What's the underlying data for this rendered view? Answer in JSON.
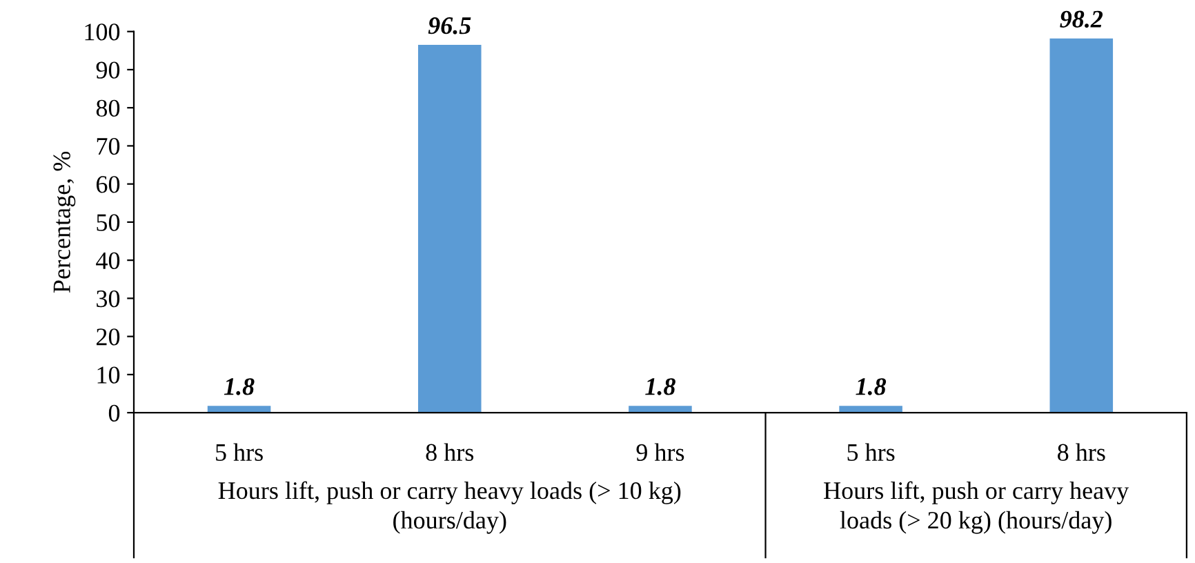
{
  "chart_data": {
    "type": "bar",
    "ylabel": "Percentage, %",
    "categories": [
      "5 hrs",
      "8 hrs",
      "9 hrs",
      "5 hrs",
      "8 hrs"
    ],
    "values": [
      1.8,
      96.5,
      1.8,
      1.8,
      98.2
    ],
    "color": "#5b9bd5",
    "ylim": [
      0,
      100
    ],
    "yticks": [
      0,
      10,
      20,
      30,
      40,
      50,
      60,
      70,
      80,
      90,
      100
    ],
    "data_labels": true,
    "grid": false,
    "legend": false,
    "annotations": [
      "Hours lift, push or carry heavy loads (> 10 kg)\n(hours/day)",
      "Hours lift, push or carry heavy\nloads (> 20 kg) (hours/day)"
    ]
  }
}
